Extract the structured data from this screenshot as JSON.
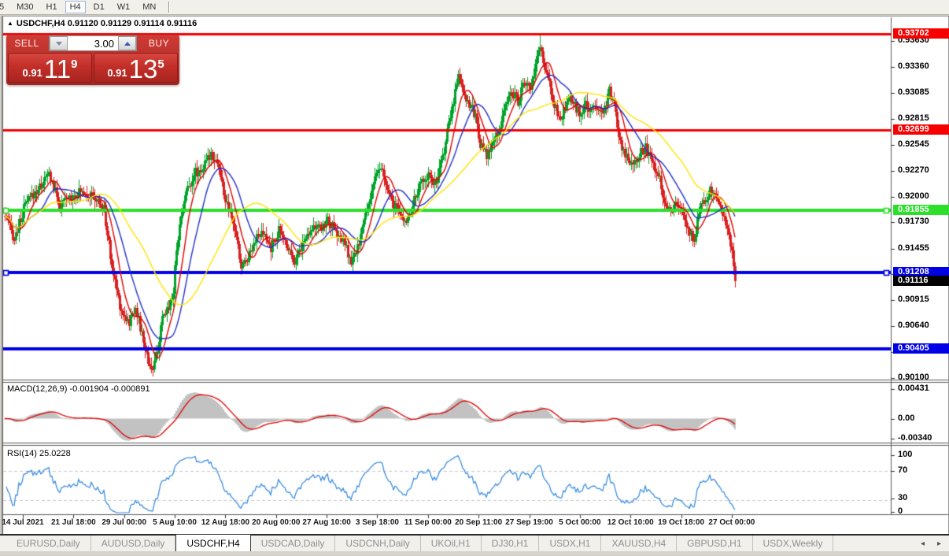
{
  "toolbar": {
    "timeframes": [
      "5",
      "M30",
      "H1",
      "H4",
      "D1",
      "W1",
      "MN"
    ],
    "active": "H4"
  },
  "chart_header": {
    "collapse_icon": "▲",
    "symbol": "USDCHF,H4",
    "ohlc": "0.91120 0.91129 0.91114 0.91116"
  },
  "trade_panel": {
    "sell_label": "SELL",
    "buy_label": "BUY",
    "volume": "3.00",
    "sell_price": {
      "prefix": "0.91",
      "big": "11",
      "sup": "9"
    },
    "buy_price": {
      "prefix": "0.91",
      "big": "13",
      "sup": "5"
    }
  },
  "chart_data": {
    "type": "candlestick",
    "symbol": "USDCHF",
    "timeframe": "H4",
    "title": "USDCHF,H4 0.91120 0.91129 0.91114 0.91116",
    "candle_colors": {
      "up": "#00A42A",
      "down": "#DA2020"
    },
    "y_ticks": [
      "0.93630",
      "0.93360",
      "0.93085",
      "0.92815",
      "0.92545",
      "0.92270",
      "0.92000",
      "0.91730",
      "0.91455",
      "0.91185",
      "0.90915",
      "0.90640",
      "0.90370",
      "0.90100"
    ],
    "y_axis_range": [
      0.901,
      0.9363
    ],
    "x_labels": [
      "14 Jul 2021",
      "21 Jul 18:00",
      "29 Jul 00:00",
      "5 Aug 10:00",
      "12 Aug 18:00",
      "20 Aug 00:00",
      "27 Aug 10:00",
      "3 Sep 18:00",
      "11 Sep 00:00",
      "20 Sep 11:00",
      "27 Sep 19:00",
      "5 Oct 00:00",
      "12 Oct 10:00",
      "19 Oct 18:00",
      "27 Oct 00:00"
    ],
    "levels": [
      {
        "value": 0.93702,
        "label": "0.93702",
        "color": "#F60000",
        "width": 3,
        "handles": []
      },
      {
        "value": 0.92699,
        "label": "0.92699",
        "color": "#F60000",
        "width": 3,
        "handles": []
      },
      {
        "value": 0.91855,
        "label": "0.91855",
        "color": "#2BDF2B",
        "width": 4,
        "handles": [
          "left",
          "right"
        ]
      },
      {
        "value": 0.91208,
        "label": "0.91208",
        "color": "#0000E6",
        "width": 4,
        "handles": [
          "left",
          "right"
        ]
      },
      {
        "value": 0.90405,
        "label": "0.90405",
        "color": "#0000E6",
        "width": 4,
        "handles": []
      }
    ],
    "current_price": {
      "value": 0.91116,
      "label": "0.91116",
      "bg": "#000000"
    },
    "bars_total": 465,
    "price_path": [
      [
        0,
        0.918
      ],
      [
        6,
        0.9155
      ],
      [
        13,
        0.9192
      ],
      [
        22,
        0.921
      ],
      [
        28,
        0.9224
      ],
      [
        35,
        0.919
      ],
      [
        43,
        0.9202
      ],
      [
        50,
        0.9206
      ],
      [
        58,
        0.9196
      ],
      [
        63,
        0.9186
      ],
      [
        68,
        0.9125
      ],
      [
        74,
        0.908
      ],
      [
        79,
        0.9068
      ],
      [
        83,
        0.9086
      ],
      [
        86,
        0.9062
      ],
      [
        91,
        0.9028
      ],
      [
        94,
        0.9018
      ],
      [
        97,
        0.904
      ],
      [
        100,
        0.907
      ],
      [
        104,
        0.9086
      ],
      [
        107,
        0.91
      ],
      [
        109,
        0.9148
      ],
      [
        114,
        0.92
      ],
      [
        120,
        0.9224
      ],
      [
        126,
        0.923
      ],
      [
        131,
        0.9246
      ],
      [
        135,
        0.9236
      ],
      [
        140,
        0.9196
      ],
      [
        146,
        0.9166
      ],
      [
        150,
        0.9126
      ],
      [
        154,
        0.9136
      ],
      [
        159,
        0.9156
      ],
      [
        164,
        0.916
      ],
      [
        169,
        0.9146
      ],
      [
        174,
        0.9164
      ],
      [
        179,
        0.915
      ],
      [
        184,
        0.9133
      ],
      [
        189,
        0.915
      ],
      [
        195,
        0.917
      ],
      [
        200,
        0.9165
      ],
      [
        205,
        0.9176
      ],
      [
        210,
        0.9162
      ],
      [
        216,
        0.915
      ],
      [
        220,
        0.9129
      ],
      [
        224,
        0.9146
      ],
      [
        229,
        0.918
      ],
      [
        234,
        0.9214
      ],
      [
        239,
        0.923
      ],
      [
        244,
        0.92
      ],
      [
        249,
        0.9186
      ],
      [
        254,
        0.9173
      ],
      [
        259,
        0.919
      ],
      [
        264,
        0.9214
      ],
      [
        269,
        0.9224
      ],
      [
        274,
        0.9211
      ],
      [
        279,
        0.925
      ],
      [
        284,
        0.9292
      ],
      [
        288,
        0.933
      ],
      [
        292,
        0.9306
      ],
      [
        296,
        0.9295
      ],
      [
        299,
        0.9284
      ],
      [
        302,
        0.9256
      ],
      [
        306,
        0.9241
      ],
      [
        310,
        0.9256
      ],
      [
        314,
        0.927
      ],
      [
        318,
        0.9296
      ],
      [
        322,
        0.931
      ],
      [
        326,
        0.93
      ],
      [
        330,
        0.932
      ],
      [
        334,
        0.9312
      ],
      [
        338,
        0.9342
      ],
      [
        340,
        0.936
      ],
      [
        343,
        0.9331
      ],
      [
        346,
        0.9318
      ],
      [
        349,
        0.9296
      ],
      [
        352,
        0.9281
      ],
      [
        356,
        0.9291
      ],
      [
        359,
        0.9302
      ],
      [
        362,
        0.9295
      ],
      [
        366,
        0.9286
      ],
      [
        369,
        0.9296
      ],
      [
        372,
        0.9289
      ],
      [
        376,
        0.9296
      ],
      [
        380,
        0.9289
      ],
      [
        384,
        0.931
      ],
      [
        387,
        0.9296
      ],
      [
        391,
        0.9256
      ],
      [
        395,
        0.9241
      ],
      [
        399,
        0.9236
      ],
      [
        403,
        0.9246
      ],
      [
        407,
        0.9251
      ],
      [
        411,
        0.9236
      ],
      [
        415,
        0.9226
      ],
      [
        419,
        0.9196
      ],
      [
        423,
        0.9186
      ],
      [
        427,
        0.9193
      ],
      [
        431,
        0.9179
      ],
      [
        435,
        0.9161
      ],
      [
        438,
        0.9156
      ],
      [
        441,
        0.9186
      ],
      [
        445,
        0.9199
      ],
      [
        448,
        0.9206
      ],
      [
        451,
        0.9201
      ],
      [
        454,
        0.9191
      ],
      [
        457,
        0.9181
      ],
      [
        460,
        0.9156
      ],
      [
        463,
        0.9131
      ],
      [
        464,
        0.91116
      ]
    ],
    "ma_lines": [
      {
        "period": 10,
        "color": "#E00000"
      },
      {
        "period": 21,
        "color": "#2030C8"
      },
      {
        "period": 50,
        "color": "#FFE400"
      }
    ],
    "indicators": {
      "macd": {
        "name": "MACD(12,26,9)",
        "values": "-0.001904 -0.000891",
        "axis_labels": [
          "0.00431",
          "0.00",
          "-0.00340"
        ],
        "fast": 12,
        "slow": 26,
        "signal": 9,
        "hist_color": "#C2C2C2",
        "signal_color": "#E00000"
      },
      "rsi": {
        "name": "RSI(14)",
        "value": "25.0228",
        "axis_labels": [
          "100",
          "70",
          "30",
          "0"
        ],
        "period": 14,
        "color": "#2E86E0",
        "levels": [
          70,
          30
        ]
      }
    }
  },
  "tabs": {
    "items": [
      "EURUSD,Daily",
      "AUDUSD,Daily",
      "USDCHF,H4",
      "USDCAD,Daily",
      "USDCNH,Daily",
      "UKOil,H1",
      "DJ30,H1",
      "USDX,H1",
      "XAUUSD,H4",
      "GBPUSD,H1",
      "USDX,Weekly"
    ],
    "active_index": 2,
    "scroll_left_icon": "◂",
    "scroll_right_icon": "▸"
  }
}
